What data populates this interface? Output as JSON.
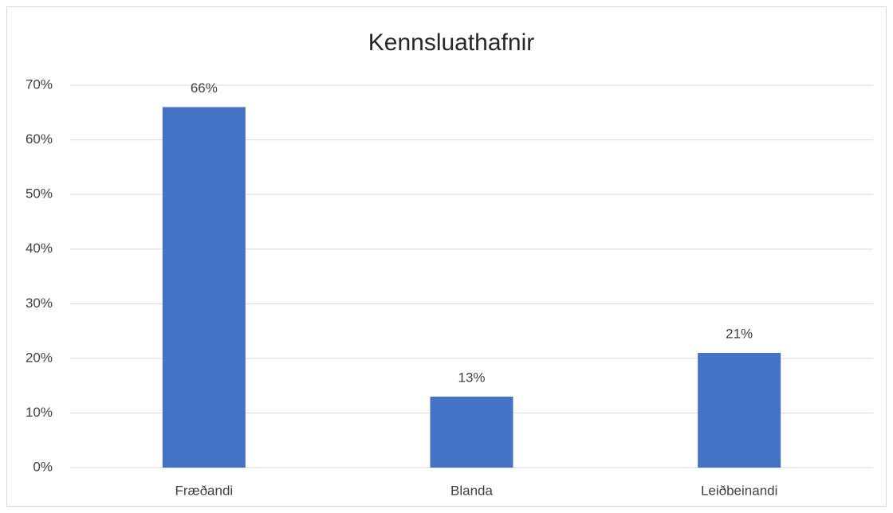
{
  "chart_data": {
    "type": "bar",
    "title": "Kennsluathafnir",
    "categories": [
      "Fræðandi",
      "Blanda",
      "Leiðbeinandi"
    ],
    "values": [
      66,
      13,
      21
    ],
    "value_labels": [
      "66%",
      "13%",
      "21%"
    ],
    "color": "#4472c4",
    "ylim": [
      0,
      70
    ],
    "yticks": [
      {
        "value": 0,
        "label": "0%"
      },
      {
        "value": 10,
        "label": "10%"
      },
      {
        "value": 20,
        "label": "20%"
      },
      {
        "value": 30,
        "label": "30%"
      },
      {
        "value": 40,
        "label": "40%"
      },
      {
        "value": 50,
        "label": "50%"
      },
      {
        "value": 60,
        "label": "60%"
      },
      {
        "value": 70,
        "label": "70%"
      }
    ],
    "grid": true
  }
}
